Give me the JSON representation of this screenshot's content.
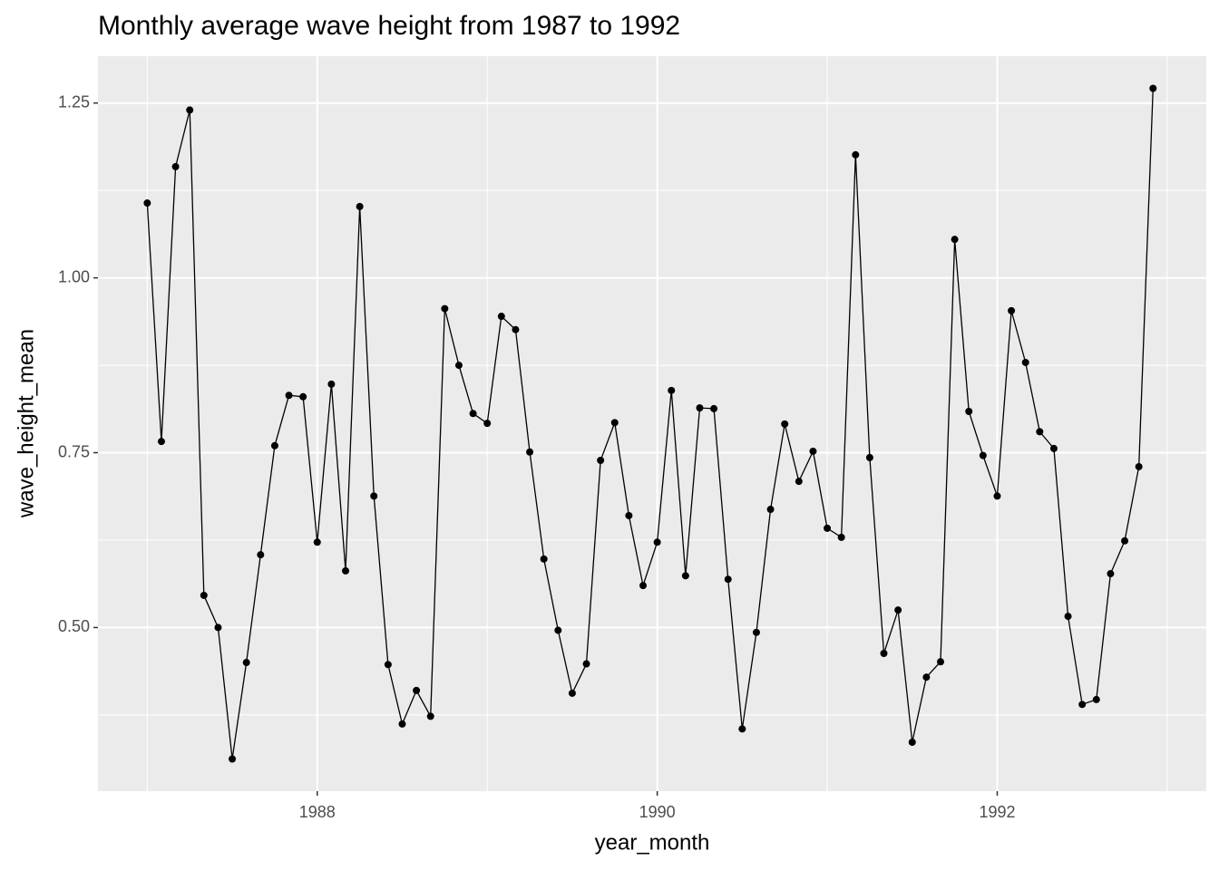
{
  "chart_data": {
    "type": "line",
    "title": "Monthly average wave height from 1987 to 1992",
    "x_label": "year_month",
    "y_label": "wave_height_mean",
    "x": [
      1987,
      1987.0833,
      1987.1667,
      1987.25,
      1987.3333,
      1987.4167,
      1987.5,
      1987.5833,
      1987.6667,
      1987.75,
      1987.8333,
      1987.9167,
      1988,
      1988.0833,
      1988.1667,
      1988.25,
      1988.3333,
      1988.4167,
      1988.5,
      1988.5833,
      1988.6667,
      1988.75,
      1988.8333,
      1988.9167,
      1989,
      1989.0833,
      1989.1667,
      1989.25,
      1989.3333,
      1989.4167,
      1989.5,
      1989.5833,
      1989.6667,
      1989.75,
      1989.8333,
      1989.9167,
      1990,
      1990.0833,
      1990.1667,
      1990.25,
      1990.3333,
      1990.4167,
      1990.5,
      1990.5833,
      1990.6667,
      1990.75,
      1990.8333,
      1990.9167,
      1991,
      1991.0833,
      1991.1667,
      1991.25,
      1991.3333,
      1991.4167,
      1991.5,
      1991.5833,
      1991.6667,
      1991.75,
      1991.8333,
      1991.9167,
      1992,
      1992.0833,
      1992.1667,
      1992.25,
      1992.3333,
      1992.4167,
      1992.5,
      1992.5833,
      1992.6667,
      1992.75,
      1992.8333,
      1992.9167
    ],
    "values": [
      1.107,
      0.766,
      1.159,
      1.24,
      0.546,
      0.5,
      0.312,
      0.45,
      0.604,
      0.76,
      0.832,
      0.83,
      0.622,
      0.848,
      0.581,
      1.102,
      0.688,
      0.447,
      0.362,
      0.41,
      0.373,
      0.956,
      0.875,
      0.806,
      0.792,
      0.945,
      0.926,
      0.751,
      0.598,
      0.496,
      0.406,
      0.448,
      0.739,
      0.793,
      0.66,
      0.56,
      0.622,
      0.839,
      0.574,
      0.814,
      0.813,
      0.569,
      0.355,
      0.493,
      0.669,
      0.791,
      0.709,
      0.752,
      0.642,
      0.629,
      1.176,
      0.743,
      0.463,
      0.525,
      0.336,
      0.429,
      0.451,
      1.055,
      0.809,
      0.746,
      0.688,
      0.953,
      0.879,
      0.78,
      0.756,
      0.516,
      0.39,
      0.397,
      0.577,
      0.624,
      0.73,
      1.271
    ],
    "color": "#000000",
    "xlim": [
      1986.71,
      1993.23
    ],
    "xticks": [
      1988,
      1990,
      1992
    ],
    "ylim": [
      0.266,
      1.317
    ],
    "yticks": [
      {
        "value": 0.5,
        "label": "0.50"
      },
      0.75,
      {
        "value": 1.0,
        "label": "1.00"
      },
      1.25
    ],
    "grid": true
  }
}
